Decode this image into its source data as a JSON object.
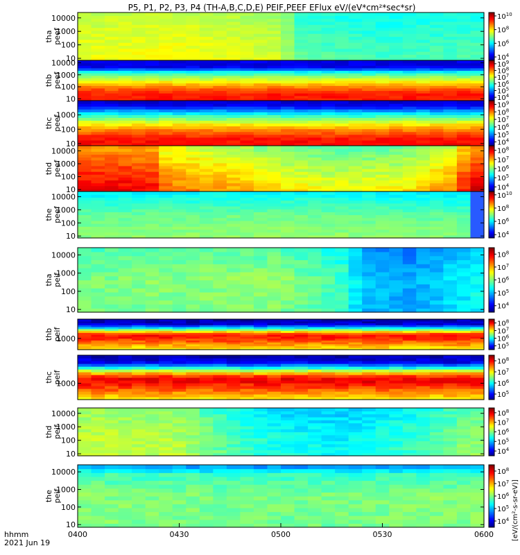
{
  "title": "P5, P1, P2, P3, P4 (TH-A,B,C,D,E) PEIF,PEEF EFlux eV/(eV*cm²*sec*sr)",
  "time_label": "hhmm",
  "date_label": "2021 Jun 19",
  "colorbar_unit_label": "[eV/(cm²-s-sr-eV)]",
  "chart_data": {
    "type": "heatmap",
    "title": "P5, P1, P2, P3, P4 (TH-A,B,C,D,E) PEIF,PEEF EFlux eV/(eV*cm²*sec*sr)",
    "x_axis": {
      "label": "hhmm",
      "date": "2021 Jun 19",
      "range_minutes": [
        240,
        360
      ],
      "ticks": [
        {
          "t": 240,
          "label": "0400"
        },
        {
          "t": 270,
          "label": "0430"
        },
        {
          "t": 300,
          "label": "0500"
        },
        {
          "t": 330,
          "label": "0530"
        },
        {
          "t": 360,
          "label": "0600"
        }
      ]
    },
    "panels": [
      {
        "probe": "tha",
        "instrument": "peef",
        "ylabel_top": "tha",
        "ylabel_bottom": "peef",
        "yrange_log10": [
          0.85,
          4.4
        ],
        "yticks": [
          "10",
          "100",
          "1000",
          "10000"
        ],
        "cbar_ticks": [
          "10^4",
          "10^6",
          "10^8",
          "10^10"
        ],
        "cbar_range_log10": [
          3.5,
          10.5
        ],
        "time_breaks_minutes": [],
        "base_log10": [
          [
            240,
            7.8
          ],
          [
            270,
            7.9
          ],
          [
            300,
            7.6
          ],
          [
            305,
            6.8
          ],
          [
            330,
            6.6
          ],
          [
            360,
            6.7
          ]
        ],
        "energy_shape": [
          [
            0,
            0.0
          ],
          [
            0.5,
            -0.2
          ],
          [
            1,
            -0.4
          ]
        ]
      },
      {
        "probe": "thb",
        "instrument": "peef",
        "ylabel_top": "thb",
        "ylabel_bottom": "peef",
        "yrange_log10": [
          0.85,
          4.2
        ],
        "yticks": [
          "10",
          "100",
          "1000",
          "10000"
        ],
        "cbar_ticks": [
          "10^4",
          "10^5",
          "10^6",
          "10^7",
          "10^8",
          "10^9"
        ],
        "cbar_range_log10": [
          3.5,
          9.5
        ],
        "time_breaks_minutes": [],
        "base_log10": [
          [
            240,
            5.0
          ],
          [
            360,
            5.0
          ]
        ],
        "energy_shape": [
          [
            0,
            3.6
          ],
          [
            0.18,
            3.6
          ],
          [
            0.3,
            3.2
          ],
          [
            0.45,
            2.4
          ],
          [
            0.6,
            1.6
          ],
          [
            0.72,
            0.7
          ],
          [
            0.82,
            -0.8
          ],
          [
            0.9,
            -0.9
          ],
          [
            1,
            -0.9
          ]
        ]
      },
      {
        "probe": "thc",
        "instrument": "peef",
        "ylabel_top": "thc",
        "ylabel_bottom": "peef",
        "yrange_log10": [
          0.85,
          4.0
        ],
        "yticks": [
          "10",
          "100",
          "1000"
        ],
        "cbar_ticks": [
          "10^4",
          "10^5",
          "10^6",
          "10^7",
          "10^8",
          "10^9"
        ],
        "cbar_range_log10": [
          3.5,
          9.5
        ],
        "time_breaks_minutes": [],
        "base_log10": [
          [
            240,
            5.0
          ],
          [
            360,
            5.0
          ]
        ],
        "energy_shape": [
          [
            0,
            3.8
          ],
          [
            0.18,
            3.6
          ],
          [
            0.35,
            3.0
          ],
          [
            0.5,
            2.2
          ],
          [
            0.62,
            1.4
          ],
          [
            0.75,
            0.4
          ],
          [
            0.88,
            -0.8
          ],
          [
            1,
            -1.1
          ]
        ]
      },
      {
        "probe": "thd",
        "instrument": "peef",
        "ylabel_top": "thd",
        "ylabel_bottom": "peef",
        "yrange_log10": [
          0.85,
          4.4
        ],
        "yticks": [
          "10",
          "100",
          "1000",
          "10000"
        ],
        "cbar_ticks": [
          "10^4",
          "10^5",
          "10^6",
          "10^7",
          "10^8"
        ],
        "cbar_range_log10": [
          3.5,
          8.5
        ],
        "time_breaks_minutes": [],
        "base_log10": [
          [
            240,
            7.6
          ],
          [
            252,
            7.6
          ],
          [
            262,
            7.5
          ],
          [
            266,
            7.0
          ],
          [
            285,
            6.7
          ],
          [
            300,
            6.4
          ],
          [
            315,
            6.2
          ],
          [
            335,
            6.3
          ],
          [
            350,
            6.8
          ],
          [
            356,
            7.6
          ],
          [
            360,
            7.7
          ]
        ],
        "energy_shape": [
          [
            0,
            0.4
          ],
          [
            0.5,
            0.0
          ],
          [
            1,
            -0.5
          ]
        ]
      },
      {
        "probe": "the",
        "instrument": "peef",
        "ylabel_top": "the",
        "ylabel_bottom": "peef",
        "yrange_log10": [
          0.85,
          4.4
        ],
        "yticks": [
          "10",
          "100",
          "1000",
          "10000"
        ],
        "cbar_ticks": [
          "10^4",
          "10^6",
          "10^8",
          "10^10"
        ],
        "cbar_range_log10": [
          3.5,
          10.5
        ],
        "time_breaks_minutes": [
          358
        ],
        "base_log10": [
          [
            240,
            6.8
          ],
          [
            300,
            6.9
          ],
          [
            340,
            6.8
          ],
          [
            360,
            6.7
          ]
        ],
        "energy_shape": [
          [
            0,
            0.3
          ],
          [
            0.5,
            0.0
          ],
          [
            0.75,
            -0.4
          ],
          [
            1,
            -0.8
          ]
        ]
      },
      {
        "probe": "tha",
        "instrument": "peif",
        "ylabel_top": "tha",
        "ylabel_bottom": "peif",
        "yrange_log10": [
          0.85,
          4.4
        ],
        "yticks": [
          "10",
          "100",
          "1000",
          "10000"
        ],
        "cbar_ticks": [
          "10^4",
          "10^5",
          "10^6",
          "10^7",
          "10^8"
        ],
        "cbar_range_log10": [
          3.5,
          8.5
        ],
        "time_breaks_minutes": [],
        "base_log10": [
          [
            240,
            5.9
          ],
          [
            300,
            6.0
          ],
          [
            318,
            5.6
          ],
          [
            325,
            5.0
          ],
          [
            340,
            4.9
          ],
          [
            360,
            5.4
          ]
        ],
        "energy_shape": [
          [
            0,
            0.0
          ],
          [
            0.5,
            0.1
          ],
          [
            1,
            -0.2
          ]
        ]
      },
      {
        "probe": "thb",
        "instrument": "peif",
        "ylabel_top": "thb",
        "ylabel_bottom": "peif",
        "yrange_log10": [
          2.3,
          4.2
        ],
        "yticks": [
          "1000"
        ],
        "cbar_ticks": [
          "10^5",
          "10^6",
          "10^7",
          "10^8"
        ],
        "cbar_range_log10": [
          4.5,
          8.5
        ],
        "time_breaks_minutes": [],
        "base_log10": [
          [
            240,
            5.0
          ],
          [
            360,
            5.0
          ]
        ],
        "energy_shape": [
          [
            0,
            2.0
          ],
          [
            0.1,
            2.2
          ],
          [
            0.3,
            2.7
          ],
          [
            0.45,
            3.0
          ],
          [
            0.55,
            2.6
          ],
          [
            0.65,
            1.6
          ],
          [
            0.75,
            0.6
          ],
          [
            0.85,
            -0.2
          ],
          [
            0.95,
            -0.3
          ],
          [
            1,
            -0.3
          ]
        ]
      },
      {
        "probe": "thc",
        "instrument": "peif",
        "ylabel_top": "thc",
        "ylabel_bottom": "peif",
        "yrange_log10": [
          2.3,
          4.2
        ],
        "yticks": [
          "1000"
        ],
        "cbar_ticks": [
          "10^5",
          "10^6",
          "10^7",
          "10^8"
        ],
        "cbar_range_log10": [
          4.5,
          8.5
        ],
        "time_breaks_minutes": [],
        "base_log10": [
          [
            240,
            5.0
          ],
          [
            360,
            5.0
          ]
        ],
        "energy_shape": [
          [
            0,
            2.0
          ],
          [
            0.15,
            2.4
          ],
          [
            0.3,
            2.8
          ],
          [
            0.45,
            3.1
          ],
          [
            0.55,
            2.7
          ],
          [
            0.65,
            1.8
          ],
          [
            0.75,
            0.7
          ],
          [
            0.85,
            -0.1
          ],
          [
            1,
            -0.3
          ]
        ]
      },
      {
        "probe": "thd",
        "instrument": "peif",
        "ylabel_top": "thd",
        "ylabel_bottom": "peif",
        "yrange_log10": [
          0.85,
          4.4
        ],
        "yticks": [
          "10",
          "100",
          "1000",
          "10000"
        ],
        "cbar_ticks": [
          "10^4",
          "10^5",
          "10^6",
          "10^7",
          "10^8"
        ],
        "cbar_range_log10": [
          3.5,
          8.5
        ],
        "time_breaks_minutes": [],
        "base_log10": [
          [
            240,
            6.3
          ],
          [
            270,
            6.2
          ],
          [
            285,
            5.7
          ],
          [
            300,
            5.4
          ],
          [
            320,
            5.3
          ],
          [
            340,
            5.6
          ],
          [
            360,
            6.1
          ]
        ],
        "energy_shape": [
          [
            0,
            0.1
          ],
          [
            0.5,
            0.0
          ],
          [
            1,
            -0.2
          ]
        ]
      },
      {
        "probe": "the",
        "instrument": "peif",
        "ylabel_top": "the",
        "ylabel_bottom": "peif",
        "yrange_log10": [
          0.85,
          4.4
        ],
        "yticks": [
          "10",
          "100",
          "1000",
          "10000"
        ],
        "cbar_ticks": [
          "10^4",
          "10^5",
          "10^6",
          "10^7",
          "10^8"
        ],
        "cbar_range_log10": [
          3.5,
          8.5
        ],
        "time_breaks_minutes": [],
        "base_log10": [
          [
            240,
            6.0
          ],
          [
            300,
            5.9
          ],
          [
            360,
            6.0
          ]
        ],
        "energy_shape": [
          [
            0,
            0.0
          ],
          [
            0.5,
            0.05
          ],
          [
            0.85,
            -0.3
          ],
          [
            1,
            -1.2
          ]
        ]
      }
    ]
  }
}
